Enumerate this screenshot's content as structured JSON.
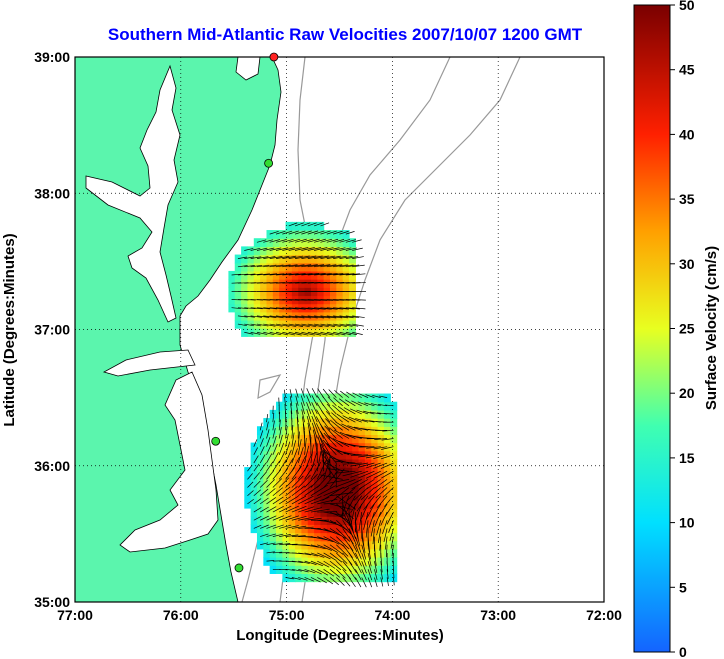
{
  "chart_data": {
    "type": "heatmap",
    "title": "Southern Mid-Atlantic Raw Velocities 2007/10/07 1200 GMT",
    "xlabel": "Longitude (Degrees:Minutes)",
    "ylabel": "Latitude (Degrees:Minutes)",
    "xlim": [
      -77,
      -72
    ],
    "ylim": [
      35,
      39
    ],
    "x_ticks": [
      {
        "value": -77,
        "label": "77:00"
      },
      {
        "value": -76,
        "label": "76:00"
      },
      {
        "value": -75,
        "label": "75:00"
      },
      {
        "value": -74,
        "label": "74:00"
      },
      {
        "value": -73,
        "label": "73:00"
      },
      {
        "value": -72,
        "label": "72:00"
      }
    ],
    "y_ticks": [
      {
        "value": 35,
        "label": "35:00"
      },
      {
        "value": 36,
        "label": "36:00"
      },
      {
        "value": 37,
        "label": "37:00"
      },
      {
        "value": 38,
        "label": "38:00"
      },
      {
        "value": 39,
        "label": "39:00"
      }
    ],
    "grid": true,
    "colorbar": {
      "label": "Surface Velocity (cm/s)",
      "min": 0,
      "max": 50,
      "ticks": [
        {
          "value": 0,
          "label": "0"
        },
        {
          "value": 5,
          "label": "5"
        },
        {
          "value": 10,
          "label": "10"
        },
        {
          "value": 15,
          "label": "15"
        },
        {
          "value": 20,
          "label": "20"
        },
        {
          "value": 25,
          "label": "25"
        },
        {
          "value": 30,
          "label": "30"
        },
        {
          "value": 35,
          "label": "35"
        },
        {
          "value": 40,
          "label": "40"
        },
        {
          "value": 45,
          "label": "45"
        },
        {
          "value": 50,
          "label": "50"
        }
      ]
    },
    "colors": {
      "land": "#5bf5ad",
      "title": "#0000ff",
      "isobath": "#999999",
      "station": "#33dd33",
      "station_active": "#ff2222"
    },
    "stations": [
      {
        "lon": -75.12,
        "lat": 39.0,
        "status": "active"
      },
      {
        "lon": -75.17,
        "lat": 38.22,
        "status": "ok"
      },
      {
        "lon": -75.67,
        "lat": 36.18,
        "status": "ok"
      },
      {
        "lon": -75.45,
        "lat": 35.25,
        "status": "ok"
      }
    ],
    "velocity_fields": [
      {
        "name": "north",
        "lon": [
          -75.55,
          -74.35
        ],
        "lat": [
          36.95,
          37.75
        ],
        "peak_lon": -74.85,
        "peak_lat": 37.25,
        "peak_speed": 48,
        "base_speed": 14
      },
      {
        "name": "south",
        "lon": [
          -75.4,
          -74.0
        ],
        "lat": [
          35.15,
          36.5
        ],
        "peak_lon": -74.55,
        "peak_lat": 35.8,
        "peak_speed": 60,
        "base_speed": 10
      }
    ]
  }
}
